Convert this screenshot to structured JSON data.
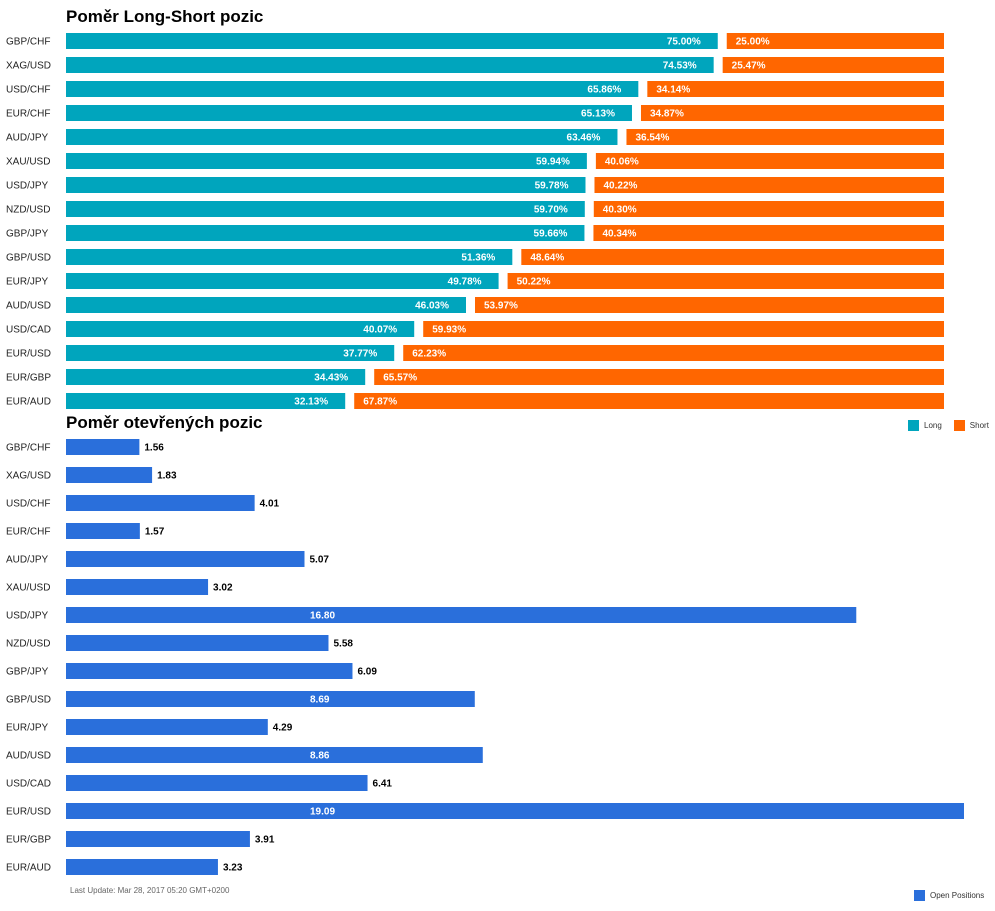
{
  "colors": {
    "long": "#00A5BD",
    "short": "#FF6600",
    "open": "#2A6FDB"
  },
  "chart_data": [
    {
      "type": "bar",
      "stacked": true,
      "orientation": "horizontal",
      "title": "Poměr Long-Short pozic",
      "categories": [
        "GBP/CHF",
        "XAG/USD",
        "USD/CHF",
        "EUR/CHF",
        "AUD/JPY",
        "XAU/USD",
        "USD/JPY",
        "NZD/USD",
        "GBP/JPY",
        "GBP/USD",
        "EUR/JPY",
        "AUD/USD",
        "USD/CAD",
        "EUR/USD",
        "EUR/GBP",
        "EUR/AUD"
      ],
      "series": [
        {
          "name": "Long",
          "values": [
            75.0,
            74.53,
            65.86,
            65.13,
            63.46,
            59.94,
            59.78,
            59.7,
            59.66,
            51.36,
            49.78,
            46.03,
            40.07,
            37.77,
            34.43,
            32.13
          ],
          "labels": [
            "75.00%",
            "74.53%",
            "65.86%",
            "65.13%",
            "63.46%",
            "59.94%",
            "59.78%",
            "59.70%",
            "59.66%",
            "51.36%",
            "49.78%",
            "46.03%",
            "40.07%",
            "37.77%",
            "34.43%",
            "32.13%"
          ]
        },
        {
          "name": "Short",
          "values": [
            25.0,
            25.47,
            34.14,
            34.87,
            36.54,
            40.06,
            40.22,
            40.3,
            40.34,
            48.64,
            50.22,
            53.97,
            59.93,
            62.23,
            65.57,
            67.87
          ],
          "labels": [
            "25.00%",
            "25.47%",
            "34.14%",
            "34.87%",
            "36.54%",
            "40.06%",
            "40.22%",
            "40.30%",
            "40.34%",
            "48.64%",
            "50.22%",
            "53.97%",
            "59.93%",
            "62.23%",
            "65.57%",
            "67.87%"
          ]
        }
      ],
      "xlim": [
        0,
        100
      ],
      "legend": "bottom-right"
    },
    {
      "type": "bar",
      "orientation": "horizontal",
      "title": "Poměr otevřených pozic",
      "categories": [
        "GBP/CHF",
        "XAG/USD",
        "USD/CHF",
        "EUR/CHF",
        "AUD/JPY",
        "XAU/USD",
        "USD/JPY",
        "NZD/USD",
        "GBP/JPY",
        "GBP/USD",
        "EUR/JPY",
        "AUD/USD",
        "USD/CAD",
        "EUR/USD",
        "EUR/GBP",
        "EUR/AUD"
      ],
      "series": [
        {
          "name": "Open Positions",
          "values": [
            1.56,
            1.83,
            4.01,
            1.57,
            5.07,
            3.02,
            16.8,
            5.58,
            6.09,
            8.69,
            4.29,
            8.86,
            6.41,
            19.09,
            3.91,
            3.23
          ],
          "labels": [
            "1.56",
            "1.83",
            "4.01",
            "1.57",
            "5.07",
            "3.02",
            "16.80",
            "5.58",
            "6.09",
            "8.69",
            "4.29",
            "8.86",
            "6.41",
            "19.09",
            "3.91",
            "3.23"
          ]
        }
      ],
      "xlim": [
        0,
        19.09
      ],
      "legend": "bottom-right"
    }
  ],
  "legend": {
    "long_label": "Long",
    "short_label": "Short",
    "open_label": "Open Positions"
  },
  "footnote": "Last Update: Mar 28, 2017 05:20 GMT+0200"
}
